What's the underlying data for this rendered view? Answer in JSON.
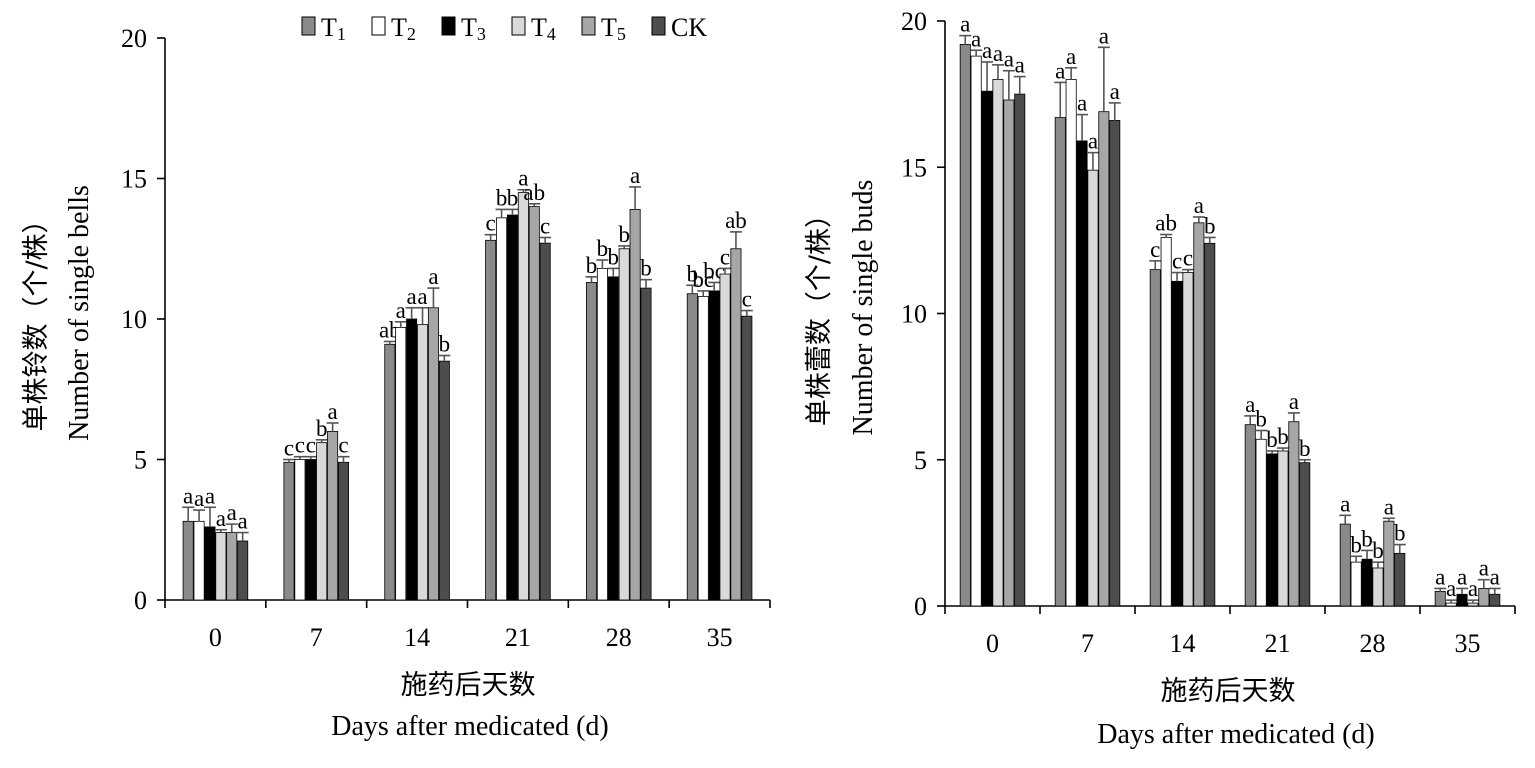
{
  "legend": [
    {
      "label": "T1",
      "color": "#8a8a8a"
    },
    {
      "label": "T2",
      "color": "#ffffff"
    },
    {
      "label": "T3",
      "color": "#000000"
    },
    {
      "label": "T4",
      "color": "#d9d9d9"
    },
    {
      "label": "T5",
      "color": "#a6a6a6"
    },
    {
      "label": "CK",
      "color": "#4d4d4d"
    }
  ],
  "chart_data": [
    {
      "type": "bar",
      "ylabel_cn": "单株铃数（个/株）",
      "ylabel_en": "Number of single bells",
      "xlabel_cn": "施药后天数",
      "xlabel_en": "Days after medicated (d)",
      "ylim": [
        0,
        20
      ],
      "yticks": [
        0,
        5,
        10,
        15,
        20
      ],
      "categories": [
        "0",
        "7",
        "14",
        "21",
        "28",
        "35"
      ],
      "series": [
        {
          "name": "T1",
          "values": [
            2.8,
            4.9,
            9.1,
            12.8,
            11.3,
            10.9
          ],
          "err": [
            0.5,
            0.1,
            0.1,
            0.2,
            0.2,
            0.3
          ],
          "sig": [
            "a",
            "c",
            "ab",
            "c",
            "b",
            "b"
          ]
        },
        {
          "name": "T2",
          "values": [
            2.8,
            5.0,
            9.7,
            13.6,
            11.8,
            10.8
          ],
          "err": [
            0.4,
            0.1,
            0.2,
            0.3,
            0.3,
            0.2
          ],
          "sig": [
            "a",
            "c",
            "a",
            "b",
            "b",
            "bc"
          ]
        },
        {
          "name": "T3",
          "values": [
            2.6,
            5.0,
            10.0,
            13.7,
            11.5,
            11.0
          ],
          "err": [
            0.7,
            0.1,
            0.4,
            0.2,
            0.3,
            0.3
          ],
          "sig": [
            "a",
            "c",
            "a",
            "b",
            "b",
            "bc"
          ]
        },
        {
          "name": "T4",
          "values": [
            2.4,
            5.6,
            9.8,
            14.5,
            12.5,
            11.6
          ],
          "err": [
            0.1,
            0.1,
            0.6,
            0.1,
            0.1,
            0.2
          ],
          "sig": [
            "a",
            "b",
            "a",
            "a",
            "b",
            "c"
          ]
        },
        {
          "name": "T5",
          "values": [
            2.4,
            6.0,
            10.4,
            14.0,
            13.9,
            12.5
          ],
          "err": [
            0.3,
            0.3,
            0.7,
            0.1,
            0.8,
            0.6
          ],
          "sig": [
            "a",
            "a",
            "a",
            "ab",
            "a",
            "ab"
          ]
        },
        {
          "name": "CK",
          "values": [
            2.1,
            4.9,
            8.5,
            12.7,
            11.1,
            10.1
          ],
          "err": [
            0.3,
            0.2,
            0.2,
            0.2,
            0.3,
            0.2
          ],
          "sig": [
            "a",
            "c",
            "b",
            "c",
            "b",
            "c"
          ]
        }
      ]
    },
    {
      "type": "bar",
      "ylabel_cn": "单株蕾数（个/株）",
      "ylabel_en": "Number of single buds",
      "xlabel_cn": "施药后天数",
      "xlabel_en": "Days after medicated (d)",
      "ylim": [
        0,
        20
      ],
      "yticks": [
        0,
        5,
        10,
        15,
        20
      ],
      "categories": [
        "0",
        "7",
        "14",
        "21",
        "28",
        "35"
      ],
      "series": [
        {
          "name": "T1",
          "values": [
            19.2,
            16.7,
            11.5,
            6.2,
            2.8,
            0.5
          ],
          "err": [
            0.3,
            1.2,
            0.3,
            0.3,
            0.3,
            0.1
          ],
          "sig": [
            "a",
            "a",
            "c",
            "a",
            "a",
            "a"
          ]
        },
        {
          "name": "T2",
          "values": [
            18.8,
            18.0,
            12.6,
            5.7,
            1.5,
            0.1
          ],
          "err": [
            0.2,
            0.4,
            0.1,
            0.3,
            0.2,
            0.1
          ],
          "sig": [
            "a",
            "a",
            "ab",
            "b",
            "b",
            "a"
          ]
        },
        {
          "name": "T3",
          "values": [
            17.6,
            15.9,
            11.1,
            5.2,
            1.6,
            0.4
          ],
          "err": [
            1.0,
            0.9,
            0.3,
            0.1,
            0.3,
            0.2
          ],
          "sig": [
            "a",
            "a",
            "c",
            "b",
            "b",
            "a"
          ]
        },
        {
          "name": "T4",
          "values": [
            18.0,
            14.9,
            11.4,
            5.3,
            1.3,
            0.1
          ],
          "err": [
            0.5,
            0.6,
            0.1,
            0.1,
            0.2,
            0.1
          ],
          "sig": [
            "a",
            "a",
            "c",
            "b",
            "b",
            "a"
          ]
        },
        {
          "name": "T5",
          "values": [
            17.3,
            16.9,
            13.1,
            6.3,
            2.9,
            0.6
          ],
          "err": [
            1.0,
            2.2,
            0.2,
            0.3,
            0.1,
            0.3
          ],
          "sig": [
            "a",
            "a",
            "a",
            "a",
            "a",
            "a"
          ]
        },
        {
          "name": "CK",
          "values": [
            17.5,
            16.6,
            12.4,
            4.9,
            1.8,
            0.4
          ],
          "err": [
            0.6,
            0.6,
            0.2,
            0.1,
            0.3,
            0.2
          ],
          "sig": [
            "a",
            "a",
            "b",
            "b",
            "b",
            "a"
          ]
        }
      ]
    }
  ]
}
